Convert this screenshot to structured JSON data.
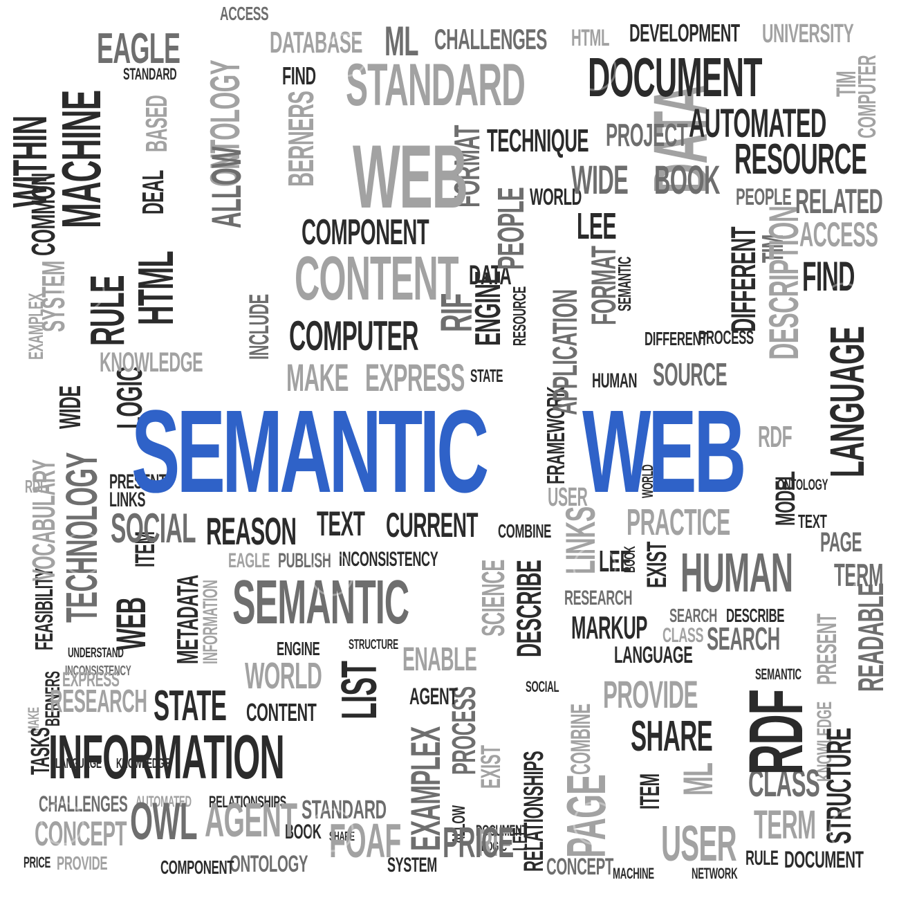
{
  "title": "SEMANTIC WEB",
  "title_words": [
    "SEMANTIC",
    "WEB"
  ],
  "colors": {
    "accent_blue": "#2f62c8",
    "dark_text": "#2b2b2b",
    "mid_text": "#6e6e6e",
    "light_text": "#a2a2a2",
    "background": "#ffffff"
  },
  "words": [
    "ACCESS",
    "AGENT",
    "ALLOW",
    "APPLICATION",
    "AUTOMATED",
    "BASED",
    "BERNERS",
    "BOOK",
    "CHALLENGES",
    "CLASS",
    "COMBINE",
    "COMMON",
    "COMPONENT",
    "COMPUTER",
    "CONCEPT",
    "CONTENT",
    "CURRENT",
    "DATA",
    "DATABASE",
    "DEAL",
    "DESCRIBE",
    "DESCRIPTION",
    "DEVELOPMENT",
    "DIFFERENT",
    "DOCUMENT",
    "EAGLE",
    "ENABLE",
    "ENGINE",
    "EXAMPLEX",
    "EXIST",
    "EXPRESS",
    "FEASIBILITY",
    "FIND",
    "FOAF",
    "FORMAT",
    "FRAMEWORK",
    "HTML",
    "HUMAN",
    "INCLUDE",
    "INCONSISTENCY",
    "INFORMATION",
    "ITEM",
    "KNOWLEDGE",
    "LANGUAGE",
    "LEE",
    "LINKS",
    "LIST",
    "LOGIC",
    "MACHINE",
    "MAKE",
    "MARKUP",
    "METADATA",
    "ML",
    "MODEL",
    "NETWORK",
    "ONTOLOGY",
    "OWL",
    "PAGE",
    "PEOPLE",
    "PRACTICE",
    "PRESENT",
    "PRICE",
    "PROCESS",
    "PROJECT",
    "PROVIDE",
    "PUBLISH",
    "RDF",
    "READABLE",
    "REASON",
    "RELATED",
    "RELATIONSHIPS",
    "RESEARCH",
    "RESOURCE",
    "RIF",
    "RULE",
    "SCIENCE",
    "SEARCH",
    "SEMANTIC",
    "SHARE",
    "SOCIAL",
    "SOURCE",
    "STANDARD",
    "STATE",
    "STRUCTURE",
    "SYSTEM",
    "TASKS",
    "TECHNIQUE",
    "TECHNOLOGY",
    "TERM",
    "TEXT",
    "TIM",
    "UNDERSTAND",
    "UNIVERSITY",
    "USER",
    "VOCABULARY",
    "WEB",
    "WIDE",
    "WITHIN",
    "WORLD"
  ]
}
